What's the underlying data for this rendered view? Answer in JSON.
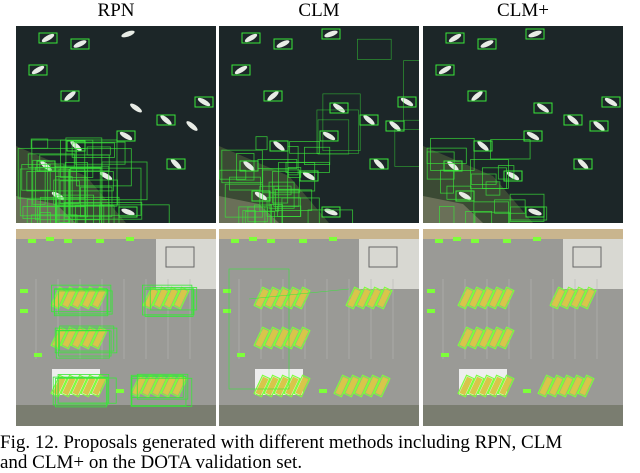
{
  "columns": [
    "RPN",
    "CLM",
    "CLM+"
  ],
  "caption": {
    "line1": "Fig. 12.  Proposals generated with different methods including RPN, CLM",
    "line2": "and CLM+ on the DOTA validation set."
  },
  "colors": {
    "water": "#1c2628",
    "asphalt": "#9a9a96",
    "proposal_box": "#39e639",
    "detected_object": "#7dff3a",
    "boat_hull": "#e8ece6",
    "bus_body": "#d8c64a",
    "rooftop": "#eeeeee"
  },
  "figure_rows": [
    "harbor-scene",
    "parking-lot-scene"
  ]
}
